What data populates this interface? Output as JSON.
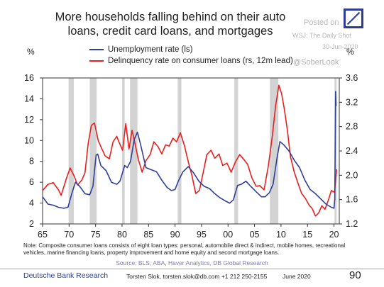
{
  "title": "More households falling behind on their auto loans, credit card loans, and mortgages",
  "watermark": {
    "posted": "Posted on",
    "source": "WSJ: The Daily Shot",
    "date": "30-Jun-2020",
    "handle": "@SoberLook"
  },
  "footer": {
    "note": "Note: Composite consumer loans consists of eight loan types: personal, automobile direct & indirect, mobile homes, recreational vehicles, marine financing loans, property improvement and home equity and second mortgage loans.",
    "source": "Source: BLS, ABA, Haver Analytics, DB Global Research",
    "brand": "Deutsche Bank Research",
    "contact": "Torsten Slok, torsten.slok@db.com +1 212 250-2155",
    "date": "June 2020",
    "page": "90"
  },
  "colors": {
    "unemployment": "#2f3f9a",
    "delinquency": "#e8201f",
    "recession": "#d3d3d3",
    "brand": "#2b3d99"
  },
  "chart_data": {
    "type": "line",
    "left_unit": "%",
    "right_unit": "%",
    "x_ticks": [
      "65",
      "70",
      "75",
      "80",
      "85",
      "90",
      "95",
      "00",
      "05",
      "10",
      "15",
      "20"
    ],
    "xlim": [
      1965,
      2021
    ],
    "ylim_left": [
      2,
      16
    ],
    "ylim_right": [
      1.2,
      3.6
    ],
    "y_ticks_left": [
      "2",
      "4",
      "6",
      "8",
      "10",
      "12",
      "14",
      "16"
    ],
    "y_ticks_right": [
      "1.2",
      "1.6",
      "2.0",
      "2.4",
      "2.8",
      "3.2",
      "3.6"
    ],
    "recessions": [
      [
        1969.9,
        1970.9
      ],
      [
        1973.9,
        1975.2
      ],
      [
        1980.0,
        1980.5
      ],
      [
        1981.5,
        1982.9
      ],
      [
        1990.5,
        1991.2
      ],
      [
        2001.2,
        2001.9
      ],
      [
        2007.9,
        2009.5
      ],
      [
        2020.1,
        2020.5
      ]
    ],
    "series": [
      {
        "name": "Unemployment rate (ls)",
        "axis": "left",
        "x": [
          1965,
          1966,
          1967,
          1968,
          1969,
          1969.8,
          1970.5,
          1971.2,
          1972,
          1973,
          1973.9,
          1974.5,
          1975.1,
          1975.4,
          1976,
          1977,
          1978,
          1979,
          1979.6,
          1980.5,
          1981,
          1981.6,
          1982.3,
          1982.9,
          1983.5,
          1984.5,
          1985.5,
          1986.5,
          1987.5,
          1988.5,
          1989.3,
          1990,
          1990.7,
          1991.5,
          1992.5,
          1993.5,
          1994.5,
          1995.5,
          1996.5,
          1997.5,
          1998.5,
          1999.5,
          2000.3,
          2001,
          2001.8,
          2002.5,
          2003.4,
          2004.3,
          2005.3,
          2006.3,
          2007,
          2007.8,
          2008.5,
          2009.3,
          2009.8,
          2010.5,
          2011.5,
          2012.5,
          2013.5,
          2014.5,
          2015.5,
          2016.5,
          2017.5,
          2018.5,
          2019.5,
          2020.0,
          2020.15,
          2020.3,
          2020.4
        ],
        "values": [
          4.6,
          3.9,
          3.8,
          3.6,
          3.5,
          3.6,
          4.9,
          6.0,
          5.6,
          4.9,
          4.8,
          5.6,
          8.6,
          8.7,
          7.6,
          7.1,
          6.0,
          5.8,
          6.1,
          7.6,
          7.4,
          8.0,
          10.1,
          10.8,
          9.6,
          7.4,
          7.2,
          7.0,
          6.2,
          5.5,
          5.2,
          5.3,
          6.2,
          7.0,
          7.5,
          6.9,
          6.1,
          5.6,
          5.4,
          4.9,
          4.5,
          4.2,
          4.0,
          4.3,
          5.7,
          5.8,
          6.1,
          5.6,
          5.1,
          4.6,
          4.6,
          5.0,
          5.8,
          8.5,
          9.9,
          9.6,
          9.0,
          8.1,
          7.4,
          6.2,
          5.3,
          4.9,
          4.4,
          3.9,
          3.6,
          3.5,
          4.4,
          14.7,
          13.3
        ]
      },
      {
        "name": "Delinquency rate on consumer loans (rs, 12m lead)",
        "axis": "right",
        "x": [
          1965,
          1966,
          1967,
          1968,
          1968.5,
          1969,
          1969.5,
          1970.2,
          1971,
          1971.6,
          1972.4,
          1973,
          1973.6,
          1974.2,
          1974.8,
          1975.5,
          1976.1,
          1976.8,
          1977.6,
          1978.3,
          1979,
          1979.5,
          1980.1,
          1980.7,
          1981.3,
          1981.9,
          1982.5,
          1983.1,
          1983.8,
          1984.5,
          1985.3,
          1986,
          1986.8,
          1987.5,
          1988.2,
          1988.9,
          1989.6,
          1990.3,
          1991,
          1991.8,
          1992.5,
          1993.2,
          1993.9,
          1994.6,
          1995.4,
          1996,
          1996.8,
          1997.5,
          1998.3,
          1999,
          1999.8,
          2000.6,
          2001.4,
          2002.2,
          2002.9,
          2003.7,
          2004.5,
          2005.3,
          2006,
          2006.8,
          2007.6,
          2008.3,
          2009,
          2009.6,
          2010.1,
          2010.6,
          2011.2,
          2011.8,
          2012.5,
          2013.2,
          2013.9,
          2014.6,
          2015.3,
          2015.9,
          2016.5,
          2017.1,
          2017.7,
          2018.3,
          2018.9,
          2019.5,
          2020.1,
          2020.5
        ],
        "values": [
          1.75,
          1.85,
          1.88,
          1.76,
          1.67,
          1.81,
          1.95,
          2.12,
          1.98,
          1.84,
          1.92,
          2.04,
          2.52,
          2.82,
          2.86,
          2.57,
          2.45,
          2.32,
          2.27,
          2.55,
          2.64,
          2.53,
          2.41,
          2.85,
          2.43,
          2.74,
          2.5,
          2.25,
          2.05,
          2.24,
          2.34,
          2.55,
          2.47,
          2.35,
          2.5,
          2.48,
          2.61,
          2.55,
          2.7,
          2.48,
          2.22,
          1.99,
          1.7,
          1.75,
          2.08,
          2.34,
          2.41,
          2.28,
          2.35,
          2.16,
          2.2,
          2.05,
          2.22,
          2.34,
          2.27,
          2.18,
          1.96,
          1.82,
          1.83,
          1.76,
          2.15,
          2.6,
          3.15,
          3.48,
          3.35,
          3.1,
          2.74,
          2.3,
          2.05,
          1.87,
          1.7,
          1.62,
          1.51,
          1.45,
          1.33,
          1.38,
          1.5,
          1.44,
          1.58,
          1.75,
          1.72,
          2.1
        ]
      }
    ]
  }
}
